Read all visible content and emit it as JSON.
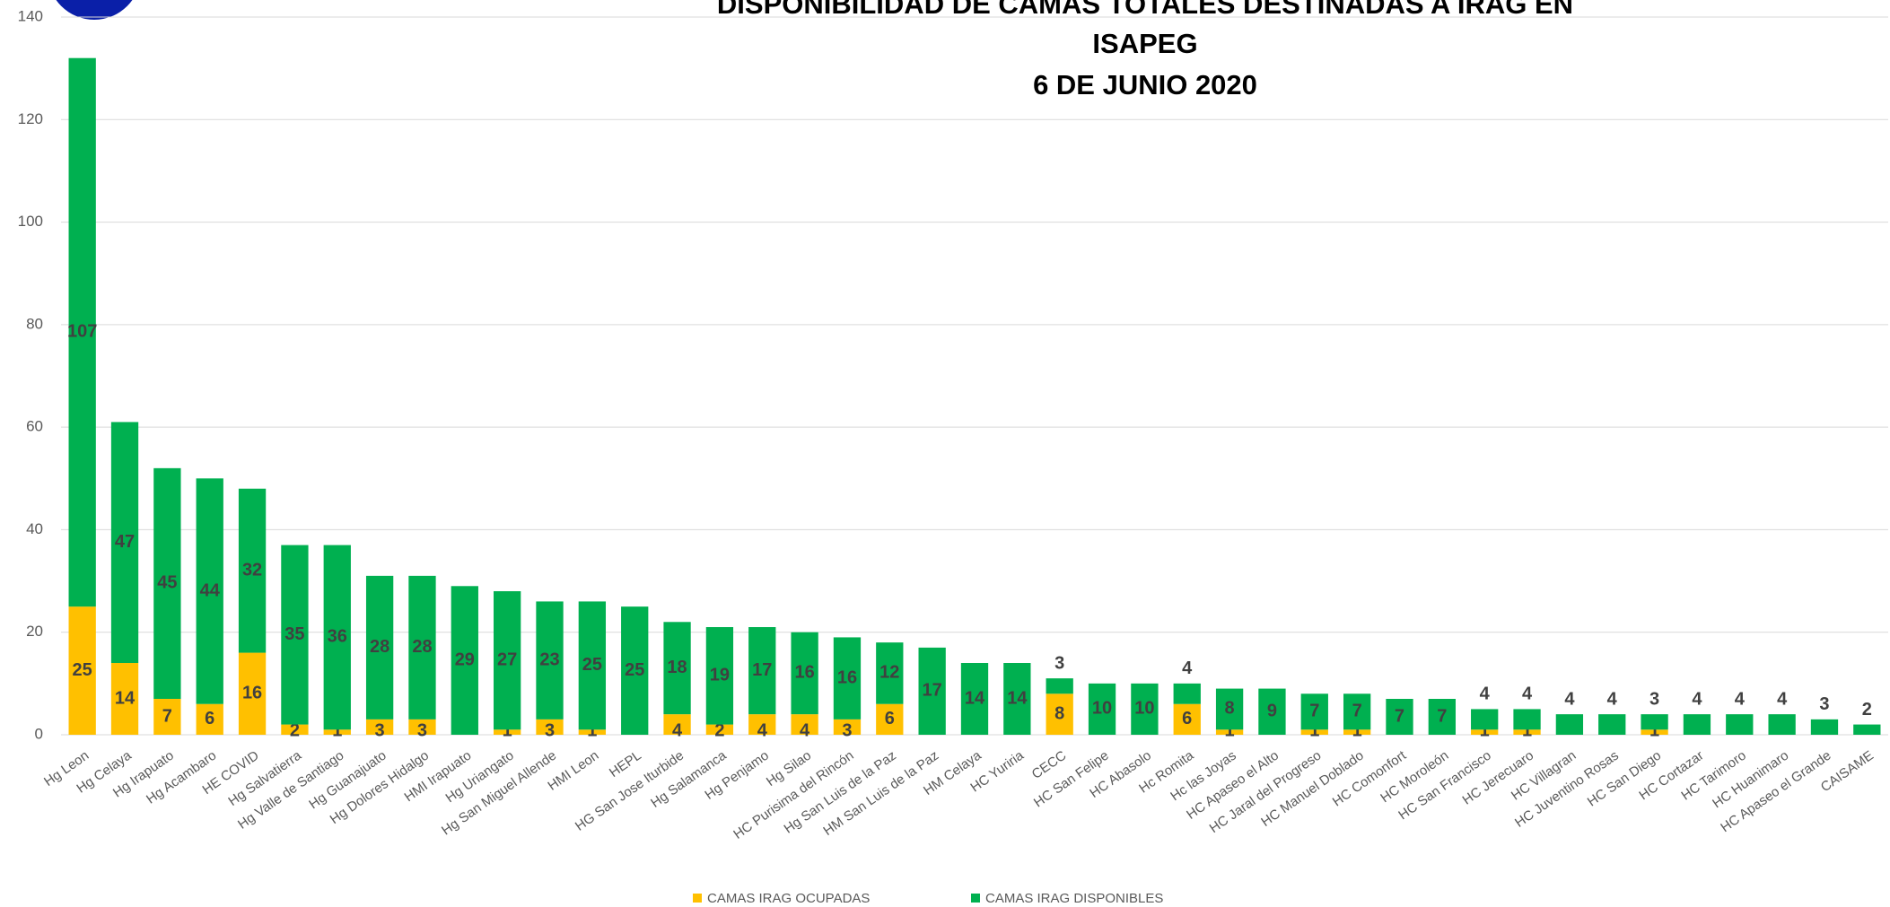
{
  "chart_data": {
    "type": "stacked_bar",
    "title": [
      "DISPONIBILIDAD DE CAMAS TOTALES DESTINADAS A IRAG EN",
      "ISAPEG",
      "6 DE JUNIO 2020"
    ],
    "categories": [
      "Hg Leon",
      "Hg Celaya",
      "Hg Irapuato",
      "Hg Acambaro",
      "HE COVID",
      "Hg Salvatierra",
      "Hg Valle de Santiago",
      "Hg Guanajuato",
      "Hg Dolores Hidalgo",
      "HMI Irapuato",
      "Hg Uriangato",
      "Hg San Miguel Allende",
      "HMI Leon",
      "HEPL",
      "HG San Jose Iturbide",
      "Hg Salamanca",
      "Hg Penjamo",
      "Hg Silao",
      "HC Purisima del Rincón",
      "Hg San Luis de la Paz",
      "HM San Luis de la Paz",
      "HM Celaya",
      "HC Yuriria",
      "CECC",
      "HC San Felipe",
      "HC Abasolo",
      "Hc Romita",
      "Hc las Joyas",
      "HC Apaseo el Alto",
      "HC Jaral del Progreso",
      "HC Manuel Doblado",
      "HC Comonfort",
      "HC Moroleón",
      "HC San Francisco",
      "HC Jerecuaro",
      "HC Villagran",
      "HC Juventino Rosas",
      "HC San Diego",
      "HC Cortazar",
      "HC Tarimoro",
      "HC Huanimaro",
      "HC Apaseo el Grande",
      "CAISAME"
    ],
    "series": [
      {
        "name": "CAMAS IRAG OCUPADAS",
        "color": "#ffc000",
        "values": [
          25,
          14,
          7,
          6,
          16,
          2,
          1,
          3,
          3,
          null,
          1,
          3,
          1,
          null,
          4,
          2,
          4,
          4,
          3,
          6,
          null,
          null,
          null,
          8,
          null,
          null,
          6,
          1,
          null,
          1,
          1,
          null,
          null,
          1,
          1,
          null,
          null,
          1,
          null,
          null,
          null,
          null,
          null
        ]
      },
      {
        "name": "CAMAS IRAG DISPONIBLES",
        "color": "#00b050",
        "values": [
          107,
          47,
          45,
          44,
          32,
          35,
          36,
          28,
          28,
          29,
          27,
          23,
          25,
          25,
          18,
          19,
          17,
          16,
          16,
          12,
          17,
          14,
          14,
          3,
          10,
          10,
          4,
          8,
          9,
          7,
          7,
          7,
          7,
          4,
          4,
          4,
          4,
          3,
          4,
          4,
          4,
          3,
          2
        ]
      }
    ],
    "ylim": [
      0,
      140
    ],
    "yticks": [
      0,
      20,
      40,
      60,
      80,
      100,
      120,
      140
    ],
    "grid": true,
    "legend": "bottom"
  }
}
